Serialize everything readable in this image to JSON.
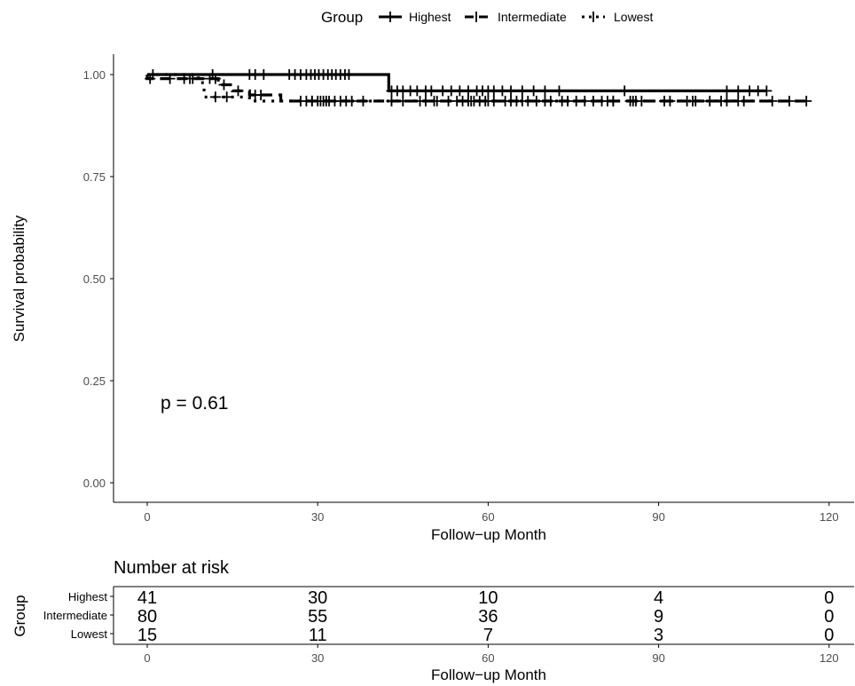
{
  "chart_data": [
    {
      "type": "line",
      "subtype": "kaplan-meier",
      "title": "",
      "xlabel": "Follow−up Month",
      "ylabel": "Survival probability",
      "xlim": [
        -5,
        125
      ],
      "ylim": [
        -0.05,
        1.05
      ],
      "xticks": [
        0,
        30,
        60,
        90,
        120
      ],
      "xtick_labels": [
        "0",
        "30",
        "60",
        "90",
        "120"
      ],
      "yticks": [
        0,
        0.25,
        0.5,
        0.75,
        1.0
      ],
      "ytick_labels": [
        "0.00",
        "0.25",
        "0.50",
        "0.75",
        "1.00"
      ],
      "grid": false,
      "legend": {
        "title": "Group",
        "placement": "top"
      },
      "annotation": "p = 0.61",
      "series": [
        {
          "name": "Highest",
          "line_style": "solid",
          "steps": [
            [
              0,
              1.0
            ],
            [
              42.5,
              1.0
            ],
            [
              42.5,
              0.96
            ],
            [
              109,
              0.96
            ]
          ],
          "censor_times": [
            11.5,
            18,
            19,
            20.5,
            25,
            26,
            27,
            28,
            28.8,
            29.5,
            30.2,
            31,
            31.8,
            32.5,
            33.2,
            34,
            34.8,
            35.5,
            43,
            44,
            45,
            46.3,
            47.5,
            49,
            50,
            52,
            53.5,
            55,
            56.5,
            58,
            59,
            60,
            61,
            62.5,
            64,
            66,
            68,
            70,
            72.5,
            84,
            102,
            104,
            106,
            107.5,
            109
          ]
        },
        {
          "name": "Intermediate",
          "line_style": "dashed",
          "steps": [
            [
              0,
              1.0
            ],
            [
              0,
              0.99
            ],
            [
              12.5,
              0.99
            ],
            [
              12.5,
              0.975
            ],
            [
              15,
              0.975
            ],
            [
              15,
              0.96
            ],
            [
              18,
              0.96
            ],
            [
              18,
              0.95
            ],
            [
              23.5,
              0.95
            ],
            [
              23.5,
              0.935
            ],
            [
              116,
              0.935
            ]
          ],
          "censor_times": [
            0.5,
            4,
            6.5,
            7.5,
            8,
            11,
            12,
            13.5,
            16,
            19,
            20,
            27,
            28,
            29,
            30,
            30.5,
            31,
            31.5,
            32,
            33,
            34,
            35,
            36,
            38,
            45,
            49,
            50.5,
            53,
            54.5,
            55.5,
            56.5,
            57.5,
            58.5,
            59.5,
            61,
            63,
            64,
            65,
            66,
            67,
            68.5,
            71,
            73,
            74,
            75.5,
            77,
            78.5,
            80,
            81,
            82,
            85.5,
            86,
            87,
            91,
            92,
            95,
            96.5,
            99,
            101,
            104,
            105,
            113,
            116
          ]
        },
        {
          "name": "Lowest",
          "line_style": "dotted",
          "steps": [
            [
              0,
              1.0
            ],
            [
              9,
              1.0
            ],
            [
              9,
              0.98
            ],
            [
              10,
              0.98
            ],
            [
              10,
              0.945
            ],
            [
              18,
              0.945
            ],
            [
              18,
              0.935
            ],
            [
              110,
              0.935
            ]
          ],
          "censor_times": [
            1,
            12,
            14,
            29,
            43,
            48,
            51,
            57,
            60,
            70,
            82,
            85,
            96,
            102,
            110
          ]
        }
      ]
    },
    {
      "type": "table",
      "title": "Number at risk",
      "xlabel": "Follow−up Month",
      "ylabel": "Group",
      "xticks": [
        0,
        30,
        60,
        90,
        120
      ],
      "xtick_labels": [
        "0",
        "30",
        "60",
        "90",
        "120"
      ],
      "rows": [
        {
          "name": "Highest",
          "values": [
            41,
            30,
            10,
            4,
            0
          ]
        },
        {
          "name": "Intermediate",
          "values": [
            80,
            55,
            36,
            9,
            0
          ]
        },
        {
          "name": "Lowest",
          "values": [
            15,
            11,
            7,
            3,
            0
          ]
        }
      ]
    }
  ]
}
